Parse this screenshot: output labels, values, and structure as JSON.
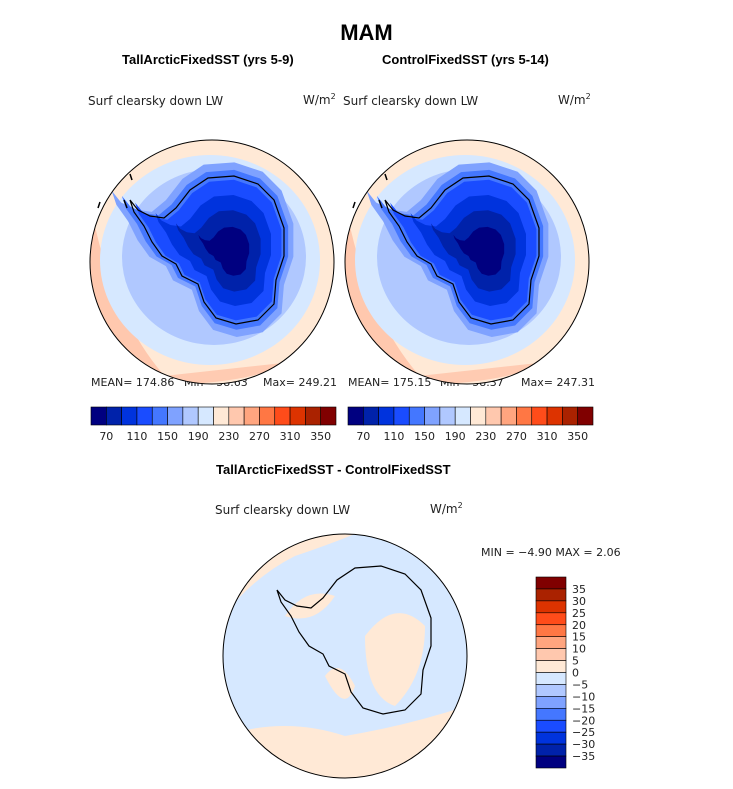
{
  "title": "MAM",
  "panels": [
    {
      "title": "TallArcticFixedSST (yrs 5-9)",
      "variable": "Surf clearsky down LW",
      "units": "W/m",
      "units_sup": "2",
      "mean": "MEAN= 174.86",
      "min": "Min=   58.63",
      "max": "Max= 249.21"
    },
    {
      "title": "ControlFixedSST (yrs 5-14)",
      "variable": "Surf clearsky down LW",
      "units": "W/m",
      "units_sup": "2",
      "mean": "MEAN= 175.15",
      "min": "Min=   58.37",
      "max": "Max= 247.31"
    }
  ],
  "difference": {
    "title": "TallArcticFixedSST - ControlFixedSST",
    "variable": "Surf clearsky down LW",
    "units": "W/m",
    "units_sup": "2",
    "minmax": "MIN =  −4.90 MAX =   2.06"
  },
  "colorbar": {
    "colors": [
      "#000080",
      "#0022AA",
      "#0033DD",
      "#1A4CFF",
      "#4477FF",
      "#7FA2FF",
      "#B0C8FF",
      "#D6E8FF",
      "#FFE9D6",
      "#FFC8AE",
      "#FFA57F",
      "#FF7744",
      "#FF4C1A",
      "#DD3300",
      "#AA2200",
      "#800000"
    ],
    "labels": [
      "70",
      "110",
      "150",
      "190",
      "230",
      "270",
      "310",
      "350"
    ],
    "levels": [
      70,
      90,
      110,
      130,
      150,
      170,
      190,
      210,
      230,
      250,
      270,
      290,
      310,
      330,
      350
    ]
  },
  "diff_colorbar": {
    "labels": [
      "35",
      "30",
      "25",
      "20",
      "15",
      "10",
      "5",
      "0",
      "−5",
      "−10",
      "−15",
      "−20",
      "−25",
      "−30",
      "−35"
    ],
    "levels": [
      35,
      30,
      25,
      20,
      15,
      10,
      5,
      0,
      -5,
      -10,
      -15,
      -20,
      -25,
      -30,
      -35
    ]
  }
}
